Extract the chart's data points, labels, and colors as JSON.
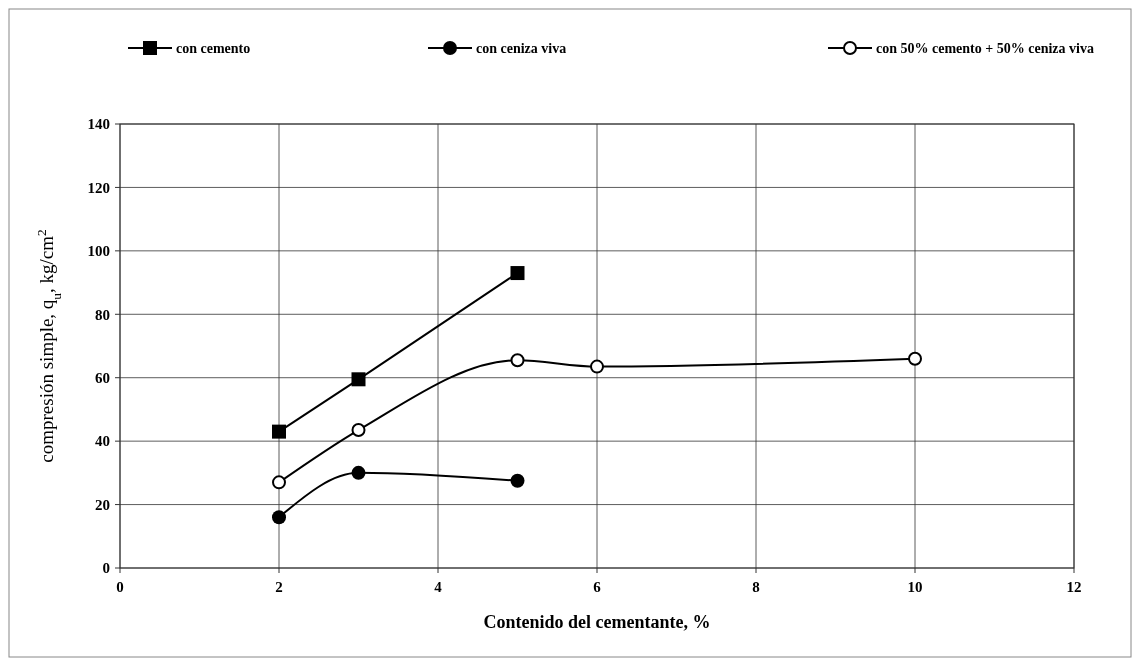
{
  "chart_data": {
    "type": "line",
    "xlabel": "Contenido del cementante, %",
    "ylabel": "compresión simple, q$_{u}$, kg/cm$^{2}$",
    "xlim": [
      0,
      12
    ],
    "xticks": [
      0,
      2,
      4,
      6,
      8,
      10,
      12
    ],
    "ylim": [
      0,
      140
    ],
    "yticks": [
      0,
      20,
      40,
      60,
      80,
      100,
      120,
      140
    ],
    "grid": true,
    "legend": "top",
    "line_style": "solid",
    "series": [
      {
        "name": "con cemento",
        "color": "#000000",
        "marker": "square",
        "x": [
          2,
          3,
          5
        ],
        "values": [
          43,
          59.5,
          93
        ]
      },
      {
        "name": "con ceniza viva",
        "color": "#000000",
        "marker": "circle",
        "x": [
          2,
          3,
          5
        ],
        "values": [
          16,
          30,
          27.5
        ]
      },
      {
        "name": "con 50% cemento + 50% ceniza viva",
        "color": "#000000",
        "marker": "open-circle",
        "x": [
          2,
          3,
          5,
          6,
          10
        ],
        "values": [
          27,
          43.5,
          65.5,
          63.5,
          66
        ]
      }
    ]
  }
}
